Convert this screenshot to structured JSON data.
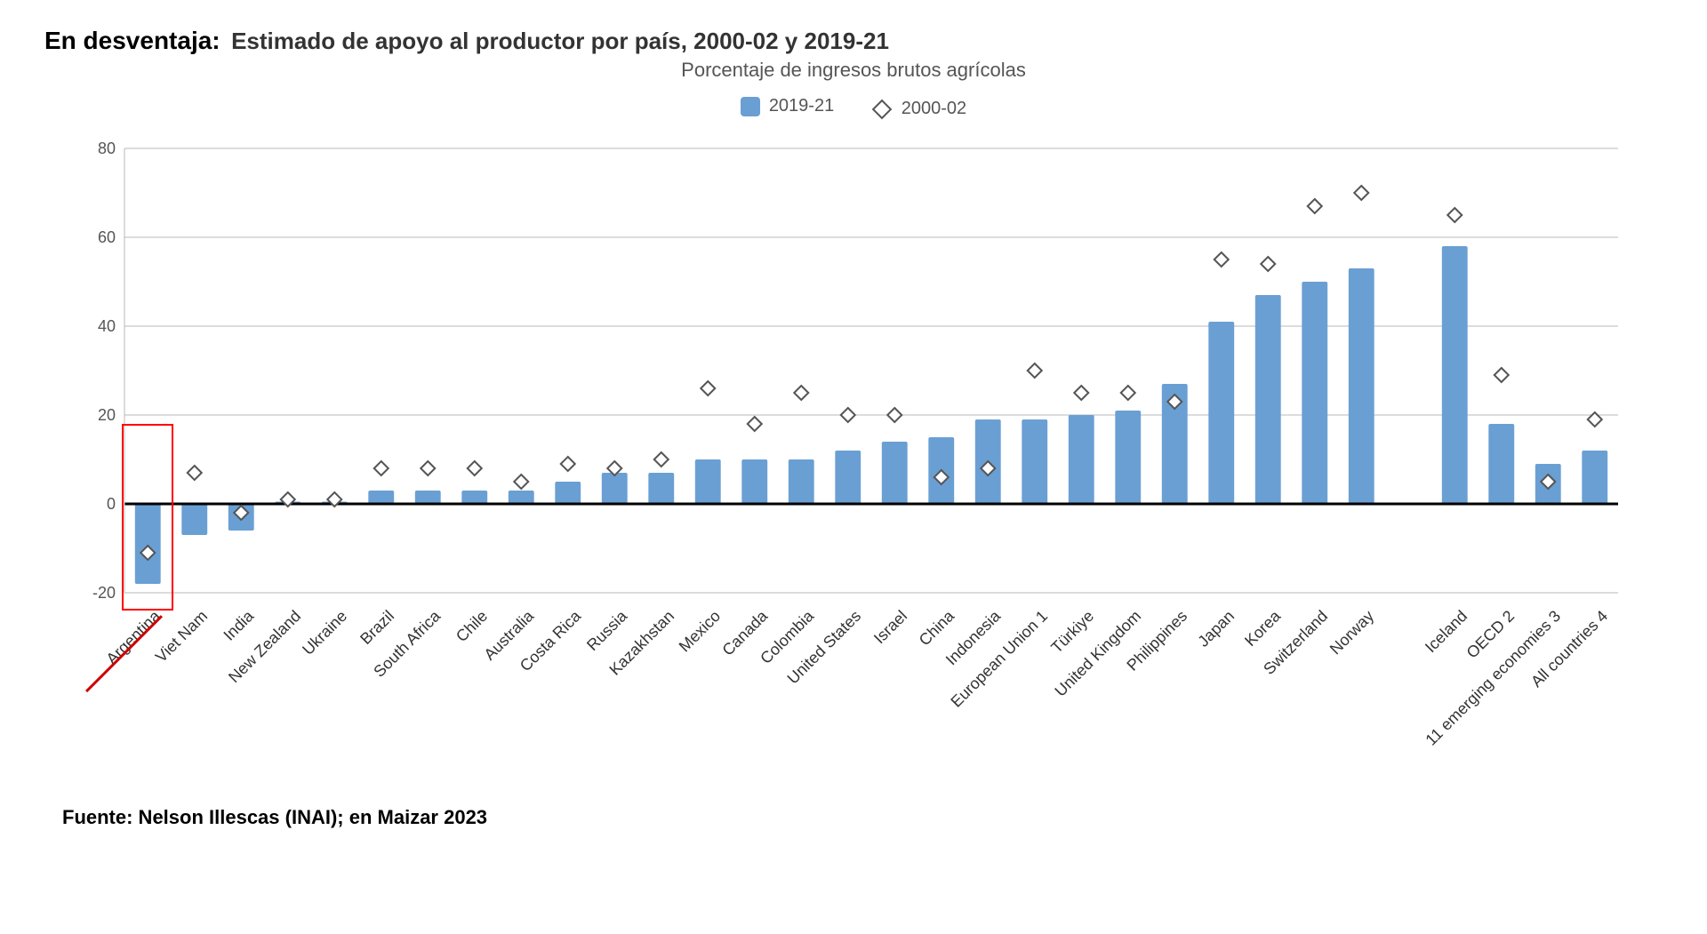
{
  "header": {
    "prefix": "En desventaja:",
    "title": "Estimado de apoyo al productor por país, 2000-02 y 2019-21",
    "subtitle": "Porcentaje de ingresos brutos agrícolas"
  },
  "legend": {
    "bar_label": "2019-21",
    "diamond_label": "2000-02"
  },
  "chart": {
    "type": "bar",
    "ylim": [
      -20,
      80
    ],
    "ytick_step": 20,
    "bar_color": "#6a9fd4",
    "diamond_stroke": "#555555",
    "diamond_fill": "#ffffff",
    "grid_color": "#b8b8b8",
    "axis_color": "#000000",
    "background_color": "#ffffff",
    "bar_width_ratio": 0.55,
    "label_fontsize": 18,
    "ytick_fontsize": 18,
    "highlight_index": 0,
    "highlight_color": "#ff0000",
    "gap_after_index": 26,
    "categories": [
      "Argentina",
      "Viet Nam",
      "India",
      "New Zealand",
      "Ukraine",
      "Brazil",
      "South Africa",
      "Chile",
      "Australia",
      "Costa Rica",
      "Russia",
      "Kazakhstan",
      "Mexico",
      "Canada",
      "Colombia",
      "United States",
      "Israel",
      "China",
      "Indonesia",
      "European Union 1",
      "Türkiye",
      "United Kingdom",
      "Philippines",
      "Japan",
      "Korea",
      "Switzerland",
      "Norway",
      "Iceland",
      "OECD 2",
      "11 emerging economies 3",
      "All countries 4"
    ],
    "bar_values": [
      -18,
      -7,
      -6,
      0.5,
      0.5,
      3,
      3,
      3,
      3,
      5,
      7,
      7,
      10,
      10,
      10,
      12,
      14,
      15,
      19,
      19,
      20,
      21,
      27,
      41,
      47,
      50,
      53,
      58,
      18,
      9,
      12
    ],
    "diamond_values": [
      -11,
      7,
      -2,
      1,
      1,
      8,
      8,
      8,
      5,
      9,
      8,
      10,
      26,
      18,
      25,
      20,
      20,
      6,
      8,
      30,
      25,
      25,
      23,
      55,
      54,
      67,
      70,
      65,
      29,
      5,
      19
    ]
  },
  "source": "Fuente: Nelson Illescas (INAI); en Maizar 2023"
}
